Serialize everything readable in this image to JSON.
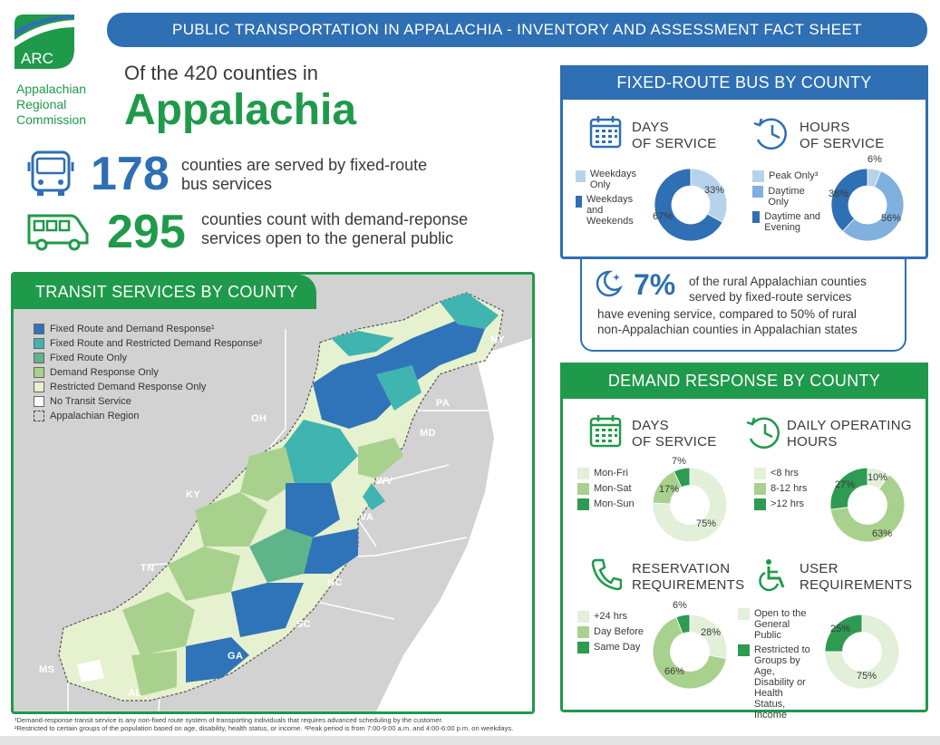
{
  "header": {
    "title": "PUBLIC TRANSPORTATION IN APPALACHIA - INVENTORY AND ASSESSMENT FACT SHEET"
  },
  "logo": {
    "abbr": "ARC",
    "line1": "Appalachian",
    "line2": "Regional",
    "line3": "Commission"
  },
  "intro": {
    "text": "Of the 420 counties in",
    "region": "Appalachia"
  },
  "stats": [
    {
      "number": "178",
      "line1": "counties are served by fixed-route",
      "line2": "bus services"
    },
    {
      "number": "295",
      "line1": "counties count with demand-reponse",
      "line2": "services open to the general public"
    }
  ],
  "colors": {
    "blue": "#2f6fb3",
    "green": "#1f9a4a",
    "light_blue": "#b7d3ec",
    "mid_blue": "#7fb0de",
    "dark_blue": "#2f6fb3",
    "light_green": "#e2f0d9",
    "mid_green": "#a9d18e",
    "dark_green": "#2e9a52"
  },
  "map": {
    "title": "TRANSIT SERVICES BY COUNTY",
    "legend": [
      {
        "label": "Fixed Route and Demand Response¹",
        "color": "#2f74b8"
      },
      {
        "label": "Fixed Route and Restricted Demand Response²",
        "color": "#3fb4b0"
      },
      {
        "label": "Fixed Route Only",
        "color": "#5fb58a"
      },
      {
        "label": "Demand Response Only",
        "color": "#a9d18e"
      },
      {
        "label": "Restricted Demand Response Only",
        "color": "#e6f1cf"
      },
      {
        "label": "No Transit Service",
        "color": "#ffffff"
      },
      {
        "label": "Appalachian Region",
        "color": "none"
      }
    ],
    "states": [
      "NY",
      "PA",
      "OH",
      "MD",
      "WV",
      "KY",
      "VA",
      "TN",
      "NC",
      "SC",
      "GA",
      "MS",
      "AL"
    ]
  },
  "fixed_route": {
    "title": "FIXED-ROUTE BUS BY COUNTY",
    "days": {
      "title_line1": "DAYS",
      "title_line2": "OF SERVICE",
      "legend": [
        "Weekdays Only",
        "Weekdays and Weekends"
      ]
    },
    "hours": {
      "title_line1": "HOURS",
      "title_line2": "OF SERVICE",
      "legend": [
        "Peak Only³",
        "Daytime Only",
        "Daytime and Evening"
      ]
    },
    "callout": {
      "percent": "7%",
      "line1": "of the rural Appalachian counties",
      "line2": "served by fixed-route services",
      "line3": "have evening service, compared to 50% of rural",
      "line4": "non-Appalachian counties in Appalachian states"
    }
  },
  "demand": {
    "title": "DEMAND RESPONSE BY COUNTY",
    "days": {
      "title_line1": "DAYS",
      "title_line2": "OF SERVICE",
      "legend": [
        "Mon-Fri",
        "Mon-Sat",
        "Mon-Sun"
      ]
    },
    "hours": {
      "title_line1": "DAILY OPERATING",
      "title_line2": "HOURS",
      "legend": [
        "<8 hrs",
        "8-12 hrs",
        ">12 hrs"
      ]
    },
    "reservation": {
      "title_line1": "RESERVATION",
      "title_line2": "REQUIREMENTS",
      "legend": [
        "+24 hrs",
        "Day Before",
        "Same Day"
      ]
    },
    "user": {
      "title_line1": "USER",
      "title_line2": "REQUIREMENTS",
      "legend": [
        "Open to the General Public",
        "Restricted to Groups by Age, Disability or Health Status, Income"
      ]
    }
  },
  "chart_data": [
    {
      "type": "pie",
      "title": "DAYS OF SERVICE",
      "categories": [
        "Weekdays Only",
        "Weekdays and Weekends"
      ],
      "values": [
        33,
        67
      ],
      "labels": [
        "33%",
        "67%"
      ],
      "colors": [
        "#b7d3ec",
        "#2f6fb3"
      ]
    },
    {
      "type": "pie",
      "title": "HOURS OF SERVICE",
      "categories": [
        "Peak Only³",
        "Daytime Only",
        "Daytime and Evening"
      ],
      "values": [
        6,
        56,
        38
      ],
      "labels": [
        "6%",
        "56%",
        "38%"
      ],
      "colors": [
        "#b7d3ec",
        "#7fb0de",
        "#2f6fb3"
      ]
    },
    {
      "type": "pie",
      "title": "DAYS OF SERVICE",
      "categories": [
        "Mon-Fri",
        "Mon-Sat",
        "Mon-Sun"
      ],
      "values": [
        75,
        17,
        7
      ],
      "labels": [
        "75%",
        "17%",
        "7%"
      ],
      "colors": [
        "#e2f0d9",
        "#a9d18e",
        "#2e9a52"
      ]
    },
    {
      "type": "pie",
      "title": "DAILY OPERATING HOURS",
      "categories": [
        "<8 hrs",
        "8-12 hrs",
        ">12 hrs"
      ],
      "values": [
        10,
        63,
        27
      ],
      "labels": [
        "10%",
        "63%",
        "27%"
      ],
      "colors": [
        "#e2f0d9",
        "#a9d18e",
        "#2e9a52"
      ]
    },
    {
      "type": "pie",
      "title": "RESERVATION REQUIREMENTS",
      "categories": [
        "+24 hrs",
        "Day Before",
        "Same Day"
      ],
      "values": [
        28,
        66,
        6
      ],
      "labels": [
        "28%",
        "66%",
        "6%"
      ],
      "colors": [
        "#e2f0d9",
        "#a9d18e",
        "#2e9a52"
      ]
    },
    {
      "type": "pie",
      "title": "USER REQUIREMENTS",
      "categories": [
        "Open to the General Public",
        "Restricted to Groups by Age, Disability or Health Status, Income"
      ],
      "values": [
        75,
        25
      ],
      "labels": [
        "75%",
        "25%"
      ],
      "colors": [
        "#e2f0d9",
        "#2e9a52"
      ]
    }
  ],
  "footnotes": {
    "line1": "¹Demand-response transit service is any non-fixed route system of transporting individuals that requires advanced scheduling by the customer.",
    "line2": "²Restricted to certain groups of the population based on age, disability, health status, or income. ³Peak period is from 7:00-9:00 a.m. and 4:00-6:00 p.m. on weekdays."
  }
}
